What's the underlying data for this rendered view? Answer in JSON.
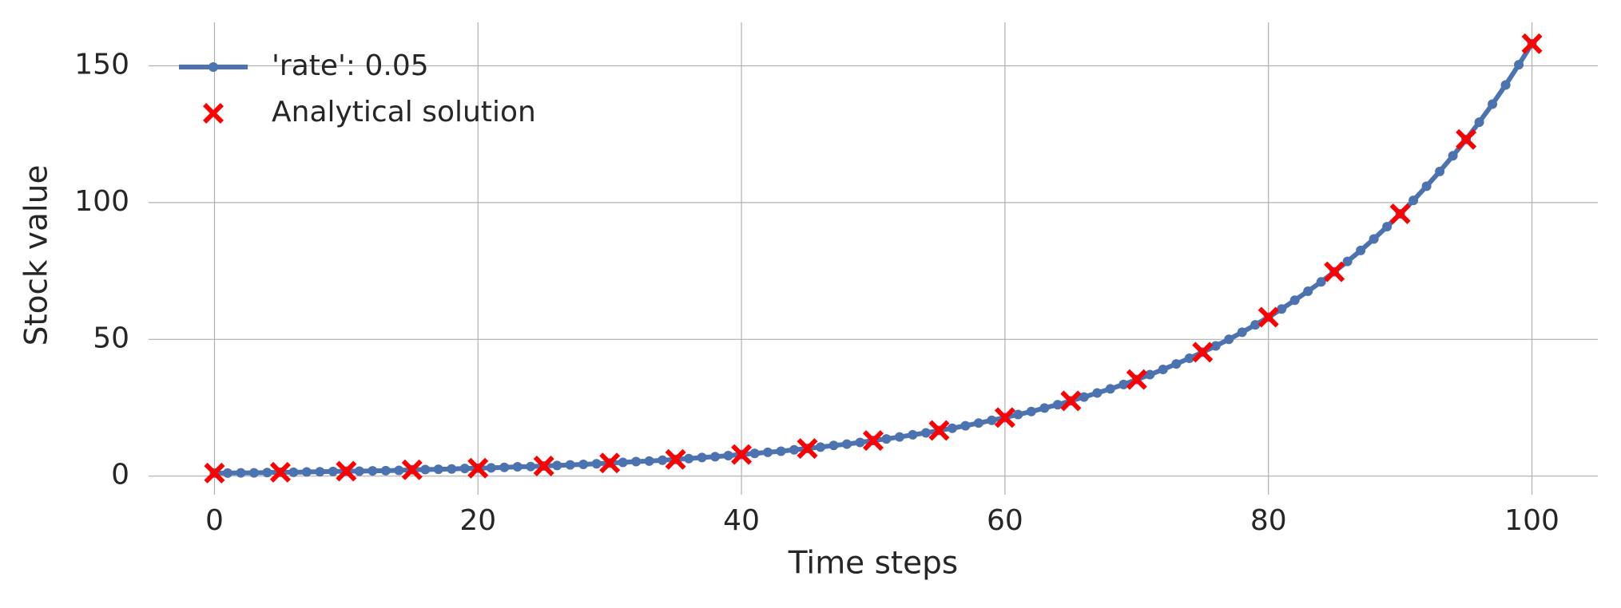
{
  "chart_data": {
    "type": "line",
    "xlabel": "Time steps",
    "ylabel": "Stock value",
    "xlim": [
      -5,
      105
    ],
    "ylim": [
      -6.8,
      165.9
    ],
    "xticks": [
      0,
      20,
      40,
      60,
      80,
      100
    ],
    "yticks": [
      0,
      50,
      100,
      150
    ],
    "grid": true,
    "legend": "upper left",
    "series": [
      {
        "name": "'rate': 0.05",
        "color": "#4c72b0",
        "marker": "o",
        "line": true,
        "x": [
          0,
          1,
          2,
          3,
          4,
          5,
          6,
          7,
          8,
          9,
          10,
          11,
          12,
          13,
          14,
          15,
          16,
          17,
          18,
          19,
          20,
          21,
          22,
          23,
          24,
          25,
          26,
          27,
          28,
          29,
          30,
          31,
          32,
          33,
          34,
          35,
          36,
          37,
          38,
          39,
          40,
          41,
          42,
          43,
          44,
          45,
          46,
          47,
          48,
          49,
          50,
          51,
          52,
          53,
          54,
          55,
          56,
          57,
          58,
          59,
          60,
          61,
          62,
          63,
          64,
          65,
          66,
          67,
          68,
          69,
          70,
          71,
          72,
          73,
          74,
          75,
          76,
          77,
          78,
          79,
          80,
          81,
          82,
          83,
          84,
          85,
          86,
          87,
          88,
          89,
          90,
          91,
          92,
          93,
          94,
          95,
          96,
          97,
          98,
          99,
          100
        ],
        "values": [
          1.1,
          1.1,
          1.2,
          1.2,
          1.3,
          1.4,
          1.4,
          1.5,
          1.6,
          1.7,
          1.8,
          1.8,
          1.9,
          2.0,
          2.1,
          2.3,
          2.4,
          2.5,
          2.6,
          2.8,
          2.9,
          3.0,
          3.2,
          3.4,
          3.5,
          3.7,
          3.9,
          4.1,
          4.3,
          4.5,
          4.8,
          5.0,
          5.3,
          5.5,
          5.8,
          6.1,
          6.4,
          6.8,
          7.1,
          7.5,
          7.9,
          8.3,
          8.7,
          9.1,
          9.6,
          10.1,
          10.6,
          11.2,
          11.7,
          12.3,
          13.0,
          13.6,
          14.3,
          15.1,
          15.8,
          16.7,
          17.5,
          18.4,
          19.4,
          20.4,
          21.4,
          22.5,
          23.6,
          24.9,
          26.1,
          27.5,
          28.9,
          30.4,
          31.9,
          33.5,
          35.3,
          37.1,
          39.0,
          41.0,
          43.1,
          45.3,
          47.6,
          50.0,
          52.6,
          55.3,
          58.1,
          61.1,
          64.3,
          67.6,
          71.0,
          74.7,
          78.5,
          82.5,
          86.7,
          91.2,
          95.9,
          100.8,
          106.0,
          111.4,
          117.1,
          123.1,
          129.4,
          136.0,
          143.0,
          150.4,
          158.1
        ]
      },
      {
        "name": "Analytical solution",
        "color": "#ff0000",
        "marker": "X",
        "line": false,
        "x": [
          0,
          5,
          10,
          15,
          20,
          25,
          30,
          35,
          40,
          45,
          50,
          55,
          60,
          65,
          70,
          75,
          80,
          85,
          90,
          95,
          100
        ],
        "values": [
          1.1,
          1.4,
          1.8,
          2.3,
          2.9,
          3.7,
          4.8,
          6.1,
          7.9,
          10.1,
          13.0,
          16.7,
          21.4,
          27.5,
          35.3,
          45.3,
          58.1,
          74.7,
          95.9,
          123.1,
          158.1
        ]
      }
    ]
  }
}
